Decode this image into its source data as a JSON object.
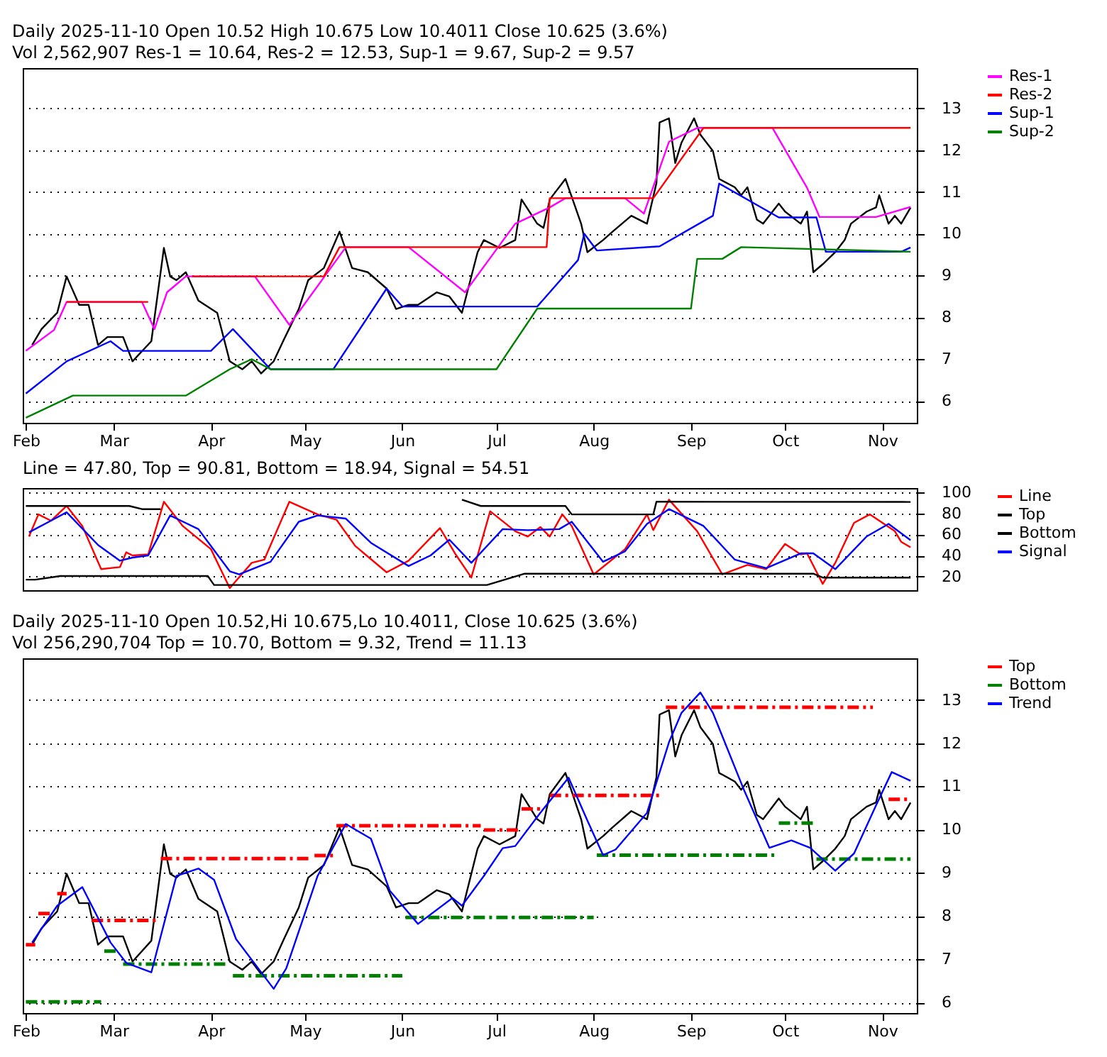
{
  "chart_data": [
    {
      "type": "line",
      "title": "Daily 2025-11-10 Open 10.52  High 10.675  Low 10.4011  Close 10.625 (3.6%)",
      "subtitle": "Vol 2,562,907 Res-1 = 10.64, Res-2 = 12.53, Sup-1 = 9.67, Sup-2 = 9.57",
      "xlim": [
        "2025-01-31",
        "2025-11-12"
      ],
      "xticks": [
        {
          "value": "2025-02-01",
          "label": "Feb"
        },
        {
          "value": "2025-03-01",
          "label": "Mar"
        },
        {
          "value": "2025-04-01",
          "label": "Apr"
        },
        {
          "value": "2025-05-01",
          "label": "May"
        },
        {
          "value": "2025-06-01",
          "label": "Jun"
        },
        {
          "value": "2025-07-01",
          "label": "Jul"
        },
        {
          "value": "2025-08-01",
          "label": "Aug"
        },
        {
          "value": "2025-09-01",
          "label": "Sep"
        },
        {
          "value": "2025-10-01",
          "label": "Oct"
        },
        {
          "value": "2025-11-01",
          "label": "Nov"
        }
      ],
      "ylim": [
        5.48,
        13.96
      ],
      "yticks": [
        6,
        7,
        8,
        9,
        10,
        11,
        12,
        13
      ],
      "grid": "y",
      "legend": "right",
      "series": [
        {
          "color": "#000000",
          "x": [
            "2025-02-03",
            "2025-02-06",
            "2025-02-11",
            "2025-02-14",
            "2025-02-18",
            "2025-02-21",
            "2025-02-24",
            "2025-02-27",
            "2025-03-04",
            "2025-03-07",
            "2025-03-13",
            "2025-03-17",
            "2025-03-19",
            "2025-03-21",
            "2025-03-24",
            "2025-03-28",
            "2025-04-03",
            "2025-04-07",
            "2025-04-11",
            "2025-04-14",
            "2025-04-17",
            "2025-04-21",
            "2025-04-24",
            "2025-04-29",
            "2025-05-02",
            "2025-05-07",
            "2025-05-12",
            "2025-05-16",
            "2025-05-21",
            "2025-05-27",
            "2025-05-30",
            "2025-06-03",
            "2025-06-06",
            "2025-06-12",
            "2025-06-16",
            "2025-06-20",
            "2025-06-25",
            "2025-06-27",
            "2025-07-02",
            "2025-07-07",
            "2025-07-09",
            "2025-07-14",
            "2025-07-16",
            "2025-07-18",
            "2025-07-23",
            "2025-07-28",
            "2025-07-30",
            "2025-08-04",
            "2025-08-07",
            "2025-08-13",
            "2025-08-18",
            "2025-08-21",
            "2025-08-22",
            "2025-08-25",
            "2025-08-27",
            "2025-08-29",
            "2025-09-02",
            "2025-09-04",
            "2025-09-08",
            "2025-09-10",
            "2025-09-15",
            "2025-09-17",
            "2025-09-19",
            "2025-09-22",
            "2025-09-24",
            "2025-09-29",
            "2025-10-01",
            "2025-10-06",
            "2025-10-08",
            "2025-10-10",
            "2025-10-13",
            "2025-10-17",
            "2025-10-20",
            "2025-10-22",
            "2025-10-27",
            "2025-10-30",
            "2025-10-31",
            "2025-11-03",
            "2025-11-05",
            "2025-11-07",
            "2025-11-10"
          ],
          "values": [
            7.34,
            7.72,
            8.11,
            8.98,
            8.3,
            8.3,
            7.34,
            7.53,
            7.53,
            6.95,
            7.43,
            9.66,
            8.98,
            8.89,
            9.08,
            8.4,
            8.11,
            6.95,
            6.76,
            6.95,
            6.66,
            6.95,
            7.43,
            8.2,
            8.89,
            9.18,
            10.05,
            9.18,
            9.08,
            8.69,
            8.2,
            8.3,
            8.3,
            8.6,
            8.5,
            8.11,
            9.56,
            9.85,
            9.66,
            9.85,
            10.82,
            10.24,
            10.14,
            10.82,
            11.31,
            10.24,
            9.56,
            9.85,
            10.05,
            10.43,
            10.24,
            11.21,
            12.66,
            12.76,
            11.69,
            12.18,
            12.76,
            12.37,
            11.98,
            11.31,
            11.11,
            10.92,
            11.11,
            10.34,
            10.24,
            10.72,
            10.53,
            10.24,
            10.53,
            9.08,
            9.27,
            9.56,
            9.85,
            10.24,
            10.53,
            10.63,
            10.92,
            10.24,
            10.43,
            10.24,
            10.625
          ]
        },
        {
          "name": "Res-1",
          "color": "#ff00ff",
          "x": [
            "2025-02-01",
            "2025-02-10",
            "2025-02-14",
            "2025-03-10",
            "2025-03-14",
            "2025-03-18",
            "2025-03-24",
            "2025-04-15",
            "2025-04-26",
            "2025-05-14",
            "2025-06-03",
            "2025-06-21",
            "2025-07-07",
            "2025-07-18",
            "2025-07-23",
            "2025-08-11",
            "2025-08-17",
            "2025-08-25",
            "2025-09-03",
            "2025-09-27",
            "2025-10-08",
            "2025-10-12",
            "2025-10-30",
            "2025-11-10"
          ],
          "values": [
            7.2,
            7.7,
            8.37,
            8.37,
            7.72,
            8.6,
            8.98,
            8.98,
            7.82,
            9.68,
            9.68,
            8.6,
            10.24,
            10.63,
            10.85,
            10.85,
            10.48,
            12.2,
            12.53,
            12.53,
            11.1,
            10.4,
            10.4,
            10.64
          ]
        },
        {
          "name": "Res-2",
          "color": "#ff0000",
          "x": [
            "2025-02-14",
            "2025-03-12",
            "2025-03-19",
            "2025-03-26",
            "2025-05-07",
            "2025-05-12",
            "2025-07-17",
            "2025-07-18",
            "2025-08-20",
            "2025-09-05",
            "2025-11-10"
          ],
          "values": [
            8.37,
            8.37,
            null,
            8.98,
            8.98,
            9.68,
            9.68,
            10.85,
            10.85,
            12.53,
            12.53
          ]
        },
        {
          "name": "Sup-1",
          "color": "#0000ff",
          "x": [
            "2025-02-01",
            "2025-02-14",
            "2025-02-28",
            "2025-03-04",
            "2025-04-01",
            "2025-04-08",
            "2025-04-20",
            "2025-05-10",
            "2025-05-27",
            "2025-06-01",
            "2025-07-14",
            "2025-07-27",
            "2025-07-29",
            "2025-08-02",
            "2025-08-22",
            "2025-09-08",
            "2025-09-10",
            "2025-09-29",
            "2025-10-11",
            "2025-10-14",
            "2025-11-07",
            "2025-11-10"
          ],
          "values": [
            6.18,
            6.95,
            7.43,
            7.2,
            7.2,
            7.72,
            6.76,
            6.76,
            8.69,
            8.26,
            8.26,
            9.37,
            10.0,
            9.6,
            9.7,
            10.43,
            11.2,
            10.39,
            10.39,
            9.57,
            9.57,
            9.67
          ]
        },
        {
          "name": "Sup-2",
          "color": "#008000",
          "x": [
            "2025-02-01",
            "2025-02-16",
            "2025-03-24",
            "2025-04-07",
            "2025-04-14",
            "2025-04-20",
            "2025-07-01",
            "2025-07-14",
            "2025-09-01",
            "2025-09-03",
            "2025-09-11",
            "2025-09-17",
            "2025-11-10"
          ],
          "values": [
            5.6,
            6.13,
            6.13,
            6.76,
            7.0,
            6.76,
            6.76,
            8.21,
            8.21,
            9.4,
            9.4,
            9.68,
            9.57
          ]
        }
      ]
    },
    {
      "type": "line",
      "title": "Line = 47.80, Top = 90.81, Bottom = 18.94, Signal = 54.51",
      "xlim": [
        "2025-01-31",
        "2025-11-12"
      ],
      "ylim": [
        7,
        104
      ],
      "yticks": [
        20,
        40,
        60,
        80,
        100
      ],
      "grid": "y",
      "legend": "right",
      "tick_labels": "y",
      "series": [
        {
          "name": "Line",
          "color": "#ff0000",
          "x": [
            "2025-02-02",
            "2025-02-05",
            "2025-02-09",
            "2025-02-14",
            "2025-02-19",
            "2025-02-25",
            "2025-03-03",
            "2025-03-05",
            "2025-03-07",
            "2025-03-12",
            "2025-03-17",
            "2025-03-23",
            "2025-04-01",
            "2025-04-07",
            "2025-04-14",
            "2025-04-18",
            "2025-04-26",
            "2025-05-05",
            "2025-05-11",
            "2025-05-17",
            "2025-05-27",
            "2025-06-03",
            "2025-06-13",
            "2025-06-18",
            "2025-06-23",
            "2025-06-29",
            "2025-07-07",
            "2025-07-11",
            "2025-07-15",
            "2025-07-18",
            "2025-07-22",
            "2025-07-25",
            "2025-08-01",
            "2025-08-11",
            "2025-08-18",
            "2025-08-20",
            "2025-08-25",
            "2025-09-03",
            "2025-09-11",
            "2025-09-19",
            "2025-09-25",
            "2025-10-01",
            "2025-10-06",
            "2025-10-08",
            "2025-10-13",
            "2025-10-17",
            "2025-10-23",
            "2025-10-28",
            "2025-11-05",
            "2025-11-07",
            "2025-11-10"
          ],
          "values": [
            58,
            79,
            73,
            87,
            68,
            27,
            29,
            43,
            40,
            41,
            91,
            68,
            46,
            9,
            33,
            36,
            91,
            79,
            74,
            49,
            24,
            35,
            66,
            41,
            19,
            82,
            63,
            58,
            67,
            58,
            79,
            68,
            22,
            46,
            79,
            64,
            93,
            63,
            22,
            31,
            27,
            51,
            41,
            42,
            13,
            33,
            71,
            79,
            63,
            53,
            47.8
          ]
        },
        {
          "name": "Top",
          "color": "#000000",
          "x": [
            "2025-02-01",
            "2025-03-06",
            "2025-03-10",
            "2025-03-16",
            "2025-03-17",
            "2025-06-20",
            "2025-06-26",
            "2025-07-23",
            "2025-07-25",
            "2025-08-20",
            "2025-08-21",
            "2025-11-10"
          ],
          "values": [
            87,
            87,
            84,
            84,
            null,
            93,
            87,
            87,
            79,
            79,
            91,
            90.81
          ]
        },
        {
          "name": "Bottom",
          "color": "#000000",
          "x": [
            "2025-02-01",
            "2025-02-04",
            "2025-02-12",
            "2025-03-31",
            "2025-04-02",
            "2025-06-28",
            "2025-07-10",
            "2025-10-10",
            "2025-10-13",
            "2025-11-10"
          ],
          "values": [
            17,
            17,
            20.5,
            20.5,
            12,
            12,
            22.7,
            22.7,
            19,
            18.94
          ]
        },
        {
          "name": "Signal",
          "color": "#0000ff",
          "x": [
            "2025-02-02",
            "2025-02-09",
            "2025-02-14",
            "2025-02-24",
            "2025-03-03",
            "2025-03-07",
            "2025-03-12",
            "2025-03-19",
            "2025-03-28",
            "2025-04-07",
            "2025-04-10",
            "2025-04-20",
            "2025-04-29",
            "2025-05-05",
            "2025-05-14",
            "2025-05-22",
            "2025-06-03",
            "2025-06-10",
            "2025-06-16",
            "2025-06-23",
            "2025-07-03",
            "2025-07-11",
            "2025-07-21",
            "2025-07-25",
            "2025-08-04",
            "2025-08-11",
            "2025-08-18",
            "2025-08-25",
            "2025-09-05",
            "2025-09-15",
            "2025-09-25",
            "2025-10-06",
            "2025-10-10",
            "2025-10-17",
            "2025-10-27",
            "2025-11-03",
            "2025-11-10"
          ],
          "values": [
            62,
            73,
            81,
            50,
            35,
            38,
            40,
            78,
            65,
            25,
            22,
            34,
            72,
            78,
            75,
            52,
            30,
            40,
            55,
            33,
            65,
            64,
            65,
            72,
            34,
            44,
            70,
            84,
            68,
            36,
            28,
            42,
            42,
            27,
            58,
            70,
            54.51
          ]
        }
      ]
    },
    {
      "type": "line",
      "title": "Daily 2025-11-10 Open 10.52,Hi 10.675,Lo 10.4011, Close 10.625 (3.6%)",
      "subtitle": "Vol 256,290,704 Top = 10.70, Bottom = 9.32, Trend = 11.13",
      "xlim": [
        "2025-01-31",
        "2025-11-12"
      ],
      "xticks": [
        {
          "value": "2025-02-01",
          "label": "Feb"
        },
        {
          "value": "2025-03-01",
          "label": "Mar"
        },
        {
          "value": "2025-04-01",
          "label": "Apr"
        },
        {
          "value": "2025-05-01",
          "label": "May"
        },
        {
          "value": "2025-06-01",
          "label": "Jun"
        },
        {
          "value": "2025-07-01",
          "label": "Jul"
        },
        {
          "value": "2025-08-01",
          "label": "Aug"
        },
        {
          "value": "2025-09-01",
          "label": "Sep"
        },
        {
          "value": "2025-10-01",
          "label": "Oct"
        },
        {
          "value": "2025-11-01",
          "label": "Nov"
        }
      ],
      "ylim": [
        5.76,
        13.96
      ],
      "yticks": [
        6,
        7,
        8,
        9,
        10,
        11,
        12,
        13
      ],
      "grid": "y",
      "legend": "right",
      "series": [
        {
          "color": "#000000",
          "x": [
            "2025-02-03",
            "2025-02-06",
            "2025-02-11",
            "2025-02-14",
            "2025-02-18",
            "2025-02-21",
            "2025-02-24",
            "2025-02-27",
            "2025-03-04",
            "2025-03-07",
            "2025-03-13",
            "2025-03-17",
            "2025-03-19",
            "2025-03-21",
            "2025-03-24",
            "2025-03-28",
            "2025-04-03",
            "2025-04-07",
            "2025-04-11",
            "2025-04-14",
            "2025-04-17",
            "2025-04-21",
            "2025-04-24",
            "2025-04-29",
            "2025-05-02",
            "2025-05-07",
            "2025-05-12",
            "2025-05-16",
            "2025-05-21",
            "2025-05-27",
            "2025-05-30",
            "2025-06-03",
            "2025-06-06",
            "2025-06-12",
            "2025-06-16",
            "2025-06-20",
            "2025-06-25",
            "2025-06-27",
            "2025-07-02",
            "2025-07-07",
            "2025-07-09",
            "2025-07-14",
            "2025-07-16",
            "2025-07-18",
            "2025-07-23",
            "2025-07-28",
            "2025-07-30",
            "2025-08-04",
            "2025-08-07",
            "2025-08-13",
            "2025-08-18",
            "2025-08-21",
            "2025-08-22",
            "2025-08-25",
            "2025-08-27",
            "2025-08-29",
            "2025-09-02",
            "2025-09-04",
            "2025-09-08",
            "2025-09-10",
            "2025-09-15",
            "2025-09-17",
            "2025-09-19",
            "2025-09-22",
            "2025-09-24",
            "2025-09-29",
            "2025-10-01",
            "2025-10-06",
            "2025-10-08",
            "2025-10-10",
            "2025-10-13",
            "2025-10-17",
            "2025-10-20",
            "2025-10-22",
            "2025-10-27",
            "2025-10-30",
            "2025-10-31",
            "2025-11-03",
            "2025-11-05",
            "2025-11-07",
            "2025-11-10"
          ],
          "values": [
            7.34,
            7.72,
            8.11,
            8.98,
            8.3,
            8.3,
            7.34,
            7.53,
            7.53,
            6.95,
            7.43,
            9.66,
            8.98,
            8.89,
            9.08,
            8.4,
            8.11,
            6.95,
            6.76,
            6.95,
            6.66,
            6.95,
            7.43,
            8.2,
            8.89,
            9.18,
            10.05,
            9.18,
            9.08,
            8.69,
            8.2,
            8.3,
            8.3,
            8.6,
            8.5,
            8.11,
            9.56,
            9.85,
            9.66,
            9.85,
            10.82,
            10.24,
            10.14,
            10.82,
            11.31,
            10.24,
            9.56,
            9.85,
            10.05,
            10.43,
            10.24,
            11.21,
            12.66,
            12.76,
            11.69,
            12.18,
            12.76,
            12.37,
            11.98,
            11.31,
            11.11,
            10.92,
            11.11,
            10.34,
            10.24,
            10.72,
            10.53,
            10.24,
            10.53,
            9.08,
            9.27,
            9.56,
            9.85,
            10.24,
            10.53,
            10.63,
            10.92,
            10.24,
            10.43,
            10.24,
            10.625
          ]
        },
        {
          "name": "Top",
          "color": "#ff0000",
          "line_style": "dashed",
          "x": [
            "2025-02-01",
            "2025-02-04",
            "2025-02-04T12:00",
            "2025-02-05",
            "2025-02-10",
            "2025-02-10T12:00",
            "2025-02-11",
            "2025-02-14",
            "2025-02-18",
            "2025-02-22",
            "2025-03-15",
            "2025-03-15T12:00",
            "2025-03-16",
            "2025-05-03",
            "2025-05-03T12:00",
            "2025-05-04",
            "2025-05-10",
            "2025-05-10T12:00",
            "2025-05-11",
            "2025-06-26",
            "2025-06-26T12:00",
            "2025-06-27",
            "2025-07-08",
            "2025-07-08T12:00",
            "2025-07-09",
            "2025-07-16",
            "2025-07-17",
            "2025-07-18",
            "2025-08-23",
            "2025-08-23T12:00",
            "2025-08-24",
            "2025-10-29",
            "2025-11-01",
            "2025-11-03",
            "2025-11-10"
          ],
          "values": [
            7.34,
            7.34,
            null,
            8.06,
            8.06,
            null,
            8.52,
            8.52,
            null,
            7.9,
            7.9,
            null,
            9.33,
            9.33,
            null,
            9.4,
            9.4,
            null,
            10.09,
            10.09,
            null,
            9.99,
            9.99,
            null,
            10.48,
            10.48,
            null,
            10.79,
            10.79,
            null,
            12.83,
            12.83,
            null,
            10.7,
            10.7
          ]
        },
        {
          "name": "Bottom",
          "color": "#008000",
          "line_style": "dashed",
          "x": [
            "2025-02-01",
            "2025-02-25",
            "2025-02-25T12:00",
            "2025-02-26",
            "2025-03-03",
            "2025-03-03T12:00",
            "2025-03-04",
            "2025-04-06",
            "2025-04-07",
            "2025-04-08",
            "2025-06-01",
            "2025-06-01T12:00",
            "2025-06-02",
            "2025-08-01",
            "2025-08-01T12:00",
            "2025-08-02",
            "2025-09-28",
            "2025-09-28T12:00",
            "2025-09-29",
            "2025-10-10",
            "2025-10-10T12:00",
            "2025-10-11",
            "2025-11-10"
          ],
          "values": [
            6.02,
            6.02,
            null,
            7.19,
            7.19,
            null,
            6.89,
            6.89,
            null,
            6.62,
            6.62,
            null,
            7.97,
            7.97,
            null,
            9.41,
            9.41,
            null,
            10.15,
            10.15,
            null,
            9.32,
            9.32
          ]
        },
        {
          "name": "Trend",
          "color": "#0000ff",
          "x": [
            "2025-02-03",
            "2025-02-11",
            "2025-02-19",
            "2025-02-28",
            "2025-03-05",
            "2025-03-13",
            "2025-03-21",
            "2025-03-28",
            "2025-04-02",
            "2025-04-09",
            "2025-04-21",
            "2025-04-25",
            "2025-05-05",
            "2025-05-14",
            "2025-05-22",
            "2025-05-28",
            "2025-06-06",
            "2025-06-17",
            "2025-06-20",
            "2025-06-27",
            "2025-07-03",
            "2025-07-07",
            "2025-07-15",
            "2025-07-24",
            "2025-07-30",
            "2025-08-04",
            "2025-08-08",
            "2025-08-18",
            "2025-08-25",
            "2025-08-29",
            "2025-09-04",
            "2025-09-08",
            "2025-09-18",
            "2025-09-26",
            "2025-10-03",
            "2025-10-09",
            "2025-10-17",
            "2025-10-23",
            "2025-10-30",
            "2025-11-04",
            "2025-11-10"
          ],
          "values": [
            7.39,
            8.24,
            8.67,
            7.39,
            6.92,
            6.7,
            8.93,
            9.1,
            8.84,
            7.47,
            6.32,
            6.79,
            8.93,
            10.13,
            9.79,
            8.59,
            7.82,
            8.42,
            8.24,
            8.93,
            9.57,
            9.62,
            10.39,
            11.2,
            10.21,
            9.41,
            9.54,
            10.39,
            12.02,
            12.7,
            13.17,
            12.7,
            10.9,
            9.58,
            9.75,
            9.58,
            9.05,
            9.45,
            10.56,
            11.33,
            11.13
          ]
        }
      ]
    }
  ]
}
